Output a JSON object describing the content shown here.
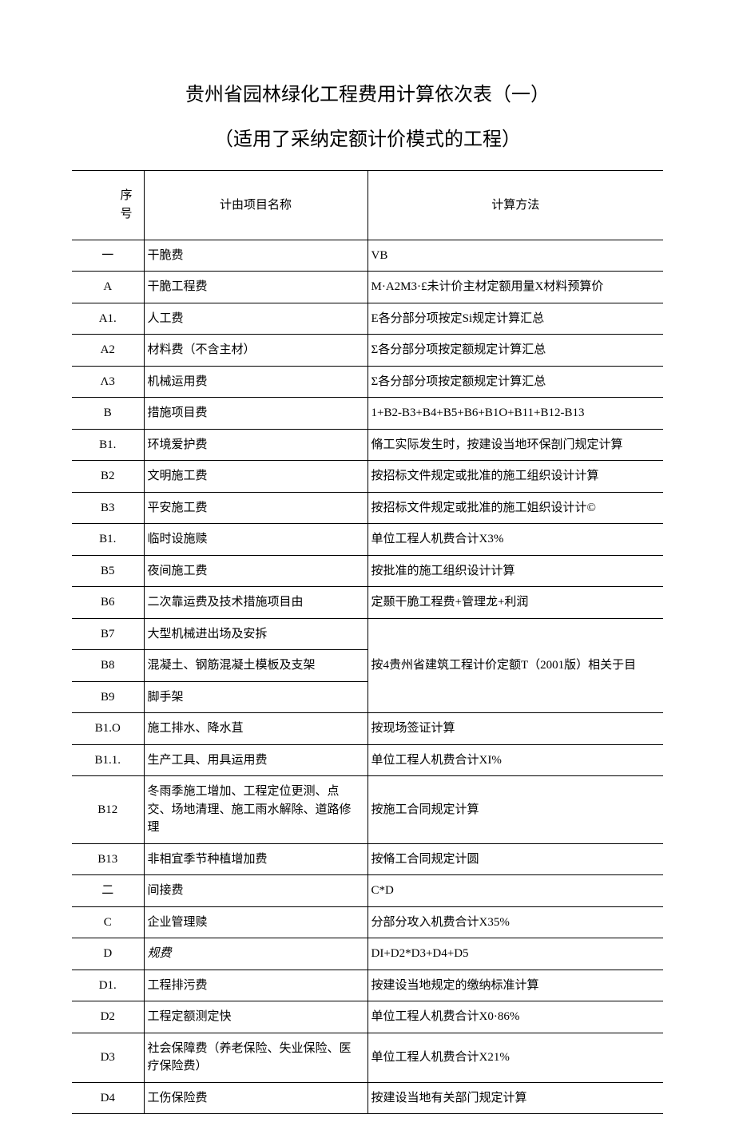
{
  "title1": "贵州省园林绿化工程费用计算依次表（一）",
  "title2": "（适用了采纳定额计价模式的工程）",
  "headers": {
    "seq_top": "序",
    "seq_bot": "号",
    "name": "计由项目名称",
    "method": "计算方法"
  },
  "rows": [
    {
      "seq": "一",
      "name": "干脆费",
      "method": "VB"
    },
    {
      "seq": "A",
      "name": "干脆工程费",
      "method": "M·A2M3·£未计价主材定额用量X材料预算价"
    },
    {
      "seq": "A1.",
      "name": "人工费",
      "method": "E各分部分项按定Si规定计算汇总"
    },
    {
      "seq": "A2",
      "name": "材料费（不含主材）",
      "method": "Σ各分部分项按定额规定计算汇总"
    },
    {
      "seq": "Λ3",
      "name": "机械运用费",
      "method": "Σ各分部分项按定额规定计算汇总"
    },
    {
      "seq": "B",
      "name": "措施项目费",
      "method": "1+B2-B3+B4+B5+B6+B1O+B11+B12-B13"
    },
    {
      "seq": "B1.",
      "name": "环境爱护费",
      "method": "脩工实际发生时，按建设当地环保剖门规定计算"
    },
    {
      "seq": "B2",
      "name": "文明施工费",
      "method": "按招标文件规定或批准的施工组织设计计算"
    },
    {
      "seq": "B3",
      "name": "平安施工费",
      "method": "按招标文件规定或批准的施工姐织设计计©"
    },
    {
      "seq": "B1.",
      "name": "临时设施赎",
      "method": "单位工程人机费合计X3%"
    },
    {
      "seq": "B5",
      "name": "夜间施工费",
      "method": "按批准的施工组织设计计算"
    },
    {
      "seq": "B6",
      "name": "二次靠运费及技术措施项目由",
      "method": "定颞干脆工程费+管理龙+利润"
    },
    {
      "seq": "B7",
      "name": "大型机械进出场及安拆",
      "method": ""
    },
    {
      "seq": "B8",
      "name": "混凝土、钢筋混凝土模板及支架",
      "method": "按4贵州省建筑工程计价定额T（2001版）相关于目"
    },
    {
      "seq": "B9",
      "name": "脚手架",
      "method": ""
    },
    {
      "seq": "B1.O",
      "name": "施工排水、降水苴",
      "method": "按现场签证计算"
    },
    {
      "seq": "B1.1.",
      "name": "生产工具、用具运用费",
      "method": "单位工程人机费合计XI%"
    },
    {
      "seq": "B12",
      "name": "冬雨季施工增加、工程定位更测、点交、场地清理、施工雨水解除、道路修理",
      "method": "按施工合同规定计算"
    },
    {
      "seq": "B13",
      "name": "非相宜季节种植增加费",
      "method": "按脩工合同规定计圆"
    },
    {
      "seq": "二",
      "name": "间接费",
      "method": "C*D"
    },
    {
      "seq": "C",
      "name": "企业管理赎",
      "method": "分部分攻入机费合计X35%"
    },
    {
      "seq": "D",
      "name": "规费",
      "method": "DI+D2*D3+D4+D5",
      "italic_name": true
    },
    {
      "seq": "D1.",
      "name": "工程排污费",
      "method": "按建设当地规定的缴纳标准计算"
    },
    {
      "seq": "D2",
      "name": "工程定额测定快",
      "method": "单位工程人机费合计X0·86%"
    },
    {
      "seq": "D3",
      "name": "社会保障费（养老保险、失业保险、医疗保险费）",
      "method": "单位工程人机费合计X21%"
    },
    {
      "seq": "D4",
      "name": "工伤保险费",
      "method": "按建设当地有关部门规定计算"
    }
  ],
  "style": {
    "background": "#ffffff",
    "text_color": "#000000",
    "border_color": "#000000",
    "title_fontsize": 24,
    "body_fontsize": 15
  }
}
